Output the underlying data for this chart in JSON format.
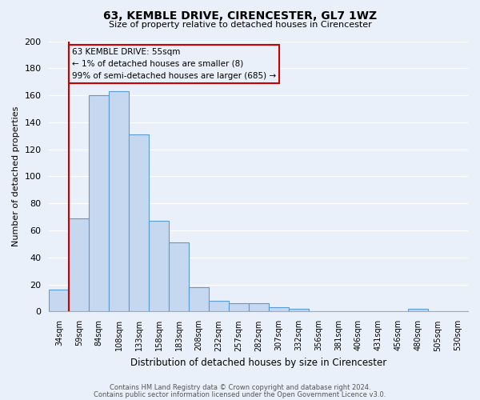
{
  "title": "63, KEMBLE DRIVE, CIRENCESTER, GL7 1WZ",
  "subtitle": "Size of property relative to detached houses in Cirencester",
  "xlabel": "Distribution of detached houses by size in Cirencester",
  "ylabel": "Number of detached properties",
  "bin_labels": [
    "34sqm",
    "59sqm",
    "84sqm",
    "108sqm",
    "133sqm",
    "158sqm",
    "183sqm",
    "208sqm",
    "232sqm",
    "257sqm",
    "282sqm",
    "307sqm",
    "332sqm",
    "356sqm",
    "381sqm",
    "406sqm",
    "431sqm",
    "456sqm",
    "480sqm",
    "505sqm",
    "530sqm"
  ],
  "bar_values": [
    16,
    69,
    160,
    163,
    131,
    67,
    51,
    18,
    8,
    6,
    6,
    3,
    2,
    0,
    0,
    0,
    0,
    0,
    2,
    0,
    0
  ],
  "bar_color": "#c5d8f0",
  "bar_edge_color": "#5b9bd5",
  "ylim": [
    0,
    200
  ],
  "yticks": [
    0,
    20,
    40,
    60,
    80,
    100,
    120,
    140,
    160,
    180,
    200
  ],
  "marker_line_color": "#cc0000",
  "annotation_text": "63 KEMBLE DRIVE: 55sqm\n← 1% of detached houses are smaller (8)\n99% of semi-detached houses are larger (685) →",
  "footer_line1": "Contains HM Land Registry data © Crown copyright and database right 2024.",
  "footer_line2": "Contains public sector information licensed under the Open Government Licence v3.0.",
  "background_color": "#eaf0f9",
  "grid_color": "#ffffff",
  "annotation_box_edge": "#cc0000"
}
